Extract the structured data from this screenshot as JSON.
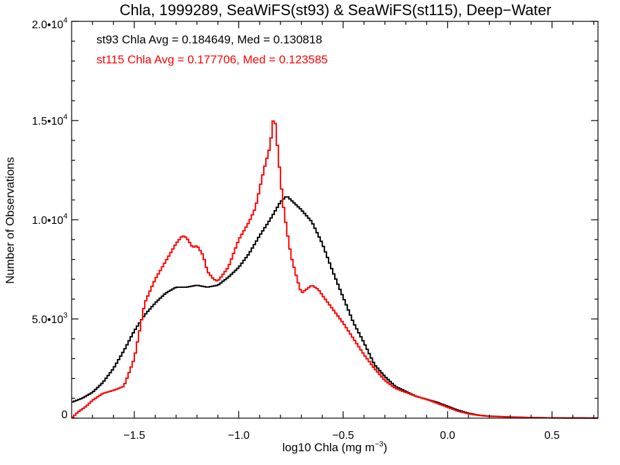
{
  "chart_data": {
    "type": "line",
    "title": "Chla, 1999289, SeaWiFS(st93) & SeaWiFS(st115), Deep−Water",
    "xlabel": "log10 Chla (mg m",
    "xlabel_sup": "−3",
    "xlabel_end": ")",
    "ylabel": "Number of Observations",
    "xlim": [
      -1.8,
      0.72
    ],
    "ylim": [
      0,
      20000
    ],
    "x_ticks": [
      -1.5,
      -1.0,
      -0.5,
      0.0,
      0.5
    ],
    "x_tick_labels": [
      "−1.5",
      "−1.0",
      "−0.5",
      "0.0",
      "0.5"
    ],
    "y_ticks": [
      0,
      5000,
      10000,
      15000,
      20000
    ],
    "y_tick_labels": [
      {
        "base": "0",
        "exp": ""
      },
      {
        "base": "5.0•10",
        "exp": "3"
      },
      {
        "base": "1.0•10",
        "exp": "4"
      },
      {
        "base": "1.5•10",
        "exp": "4"
      },
      {
        "base": "2.0•10",
        "exp": "4"
      }
    ],
    "annotations": [
      {
        "text": "st93 Chla Avg = 0.184649, Med = 0.130818",
        "color": "#000000"
      },
      {
        "text": "st115 Chla Avg = 0.177706, Med = 0.123585",
        "color": "#ff0000"
      }
    ],
    "series": [
      {
        "color": "#000000",
        "points": [
          [
            -1.8,
            800
          ],
          [
            -1.75,
            1000
          ],
          [
            -1.7,
            1300
          ],
          [
            -1.65,
            1800
          ],
          [
            -1.6,
            2500
          ],
          [
            -1.55,
            3400
          ],
          [
            -1.5,
            4400
          ],
          [
            -1.45,
            5200
          ],
          [
            -1.4,
            5800
          ],
          [
            -1.35,
            6300
          ],
          [
            -1.3,
            6600
          ],
          [
            -1.25,
            6600
          ],
          [
            -1.2,
            6700
          ],
          [
            -1.15,
            6600
          ],
          [
            -1.1,
            6700
          ],
          [
            -1.05,
            7100
          ],
          [
            -1.0,
            7600
          ],
          [
            -0.95,
            8300
          ],
          [
            -0.9,
            9200
          ],
          [
            -0.85,
            10000
          ],
          [
            -0.8,
            10900
          ],
          [
            -0.77,
            11200
          ],
          [
            -0.75,
            11000
          ],
          [
            -0.7,
            10500
          ],
          [
            -0.65,
            9900
          ],
          [
            -0.6,
            8800
          ],
          [
            -0.55,
            7400
          ],
          [
            -0.5,
            6100
          ],
          [
            -0.45,
            4800
          ],
          [
            -0.4,
            3800
          ],
          [
            -0.35,
            2700
          ],
          [
            -0.3,
            2100
          ],
          [
            -0.25,
            1600
          ],
          [
            -0.2,
            1350
          ],
          [
            -0.15,
            1100
          ],
          [
            -0.1,
            950
          ],
          [
            -0.05,
            800
          ],
          [
            0.0,
            600
          ],
          [
            0.05,
            400
          ],
          [
            0.1,
            250
          ],
          [
            0.15,
            150
          ],
          [
            0.2,
            100
          ],
          [
            0.3,
            60
          ],
          [
            0.4,
            30
          ],
          [
            0.5,
            15
          ],
          [
            0.6,
            8
          ],
          [
            0.72,
            5
          ]
        ]
      },
      {
        "color": "#ff0000",
        "points": [
          [
            -1.8,
            0
          ],
          [
            -1.77,
            300
          ],
          [
            -1.73,
            600
          ],
          [
            -1.7,
            900
          ],
          [
            -1.65,
            1250
          ],
          [
            -1.6,
            1400
          ],
          [
            -1.55,
            1600
          ],
          [
            -1.5,
            3000
          ],
          [
            -1.45,
            5800
          ],
          [
            -1.4,
            7000
          ],
          [
            -1.35,
            7900
          ],
          [
            -1.3,
            8800
          ],
          [
            -1.27,
            9200
          ],
          [
            -1.25,
            9100
          ],
          [
            -1.22,
            8600
          ],
          [
            -1.2,
            8700
          ],
          [
            -1.17,
            8200
          ],
          [
            -1.15,
            7400
          ],
          [
            -1.12,
            7000
          ],
          [
            -1.1,
            6900
          ],
          [
            -1.05,
            7600
          ],
          [
            -1.0,
            9000
          ],
          [
            -0.95,
            9900
          ],
          [
            -0.92,
            10600
          ],
          [
            -0.88,
            12500
          ],
          [
            -0.85,
            13700
          ],
          [
            -0.83,
            15400
          ],
          [
            -0.81,
            13200
          ],
          [
            -0.79,
            11000
          ],
          [
            -0.77,
            9500
          ],
          [
            -0.75,
            8200
          ],
          [
            -0.72,
            7000
          ],
          [
            -0.7,
            6300
          ],
          [
            -0.65,
            6700
          ],
          [
            -0.62,
            6500
          ],
          [
            -0.6,
            6200
          ],
          [
            -0.55,
            5500
          ],
          [
            -0.5,
            4800
          ],
          [
            -0.45,
            4000
          ],
          [
            -0.4,
            3200
          ],
          [
            -0.35,
            2500
          ],
          [
            -0.3,
            1900
          ],
          [
            -0.25,
            1500
          ],
          [
            -0.2,
            1300
          ],
          [
            -0.15,
            1100
          ],
          [
            -0.1,
            950
          ],
          [
            -0.05,
            750
          ],
          [
            0.0,
            550
          ],
          [
            0.05,
            350
          ],
          [
            0.1,
            220
          ],
          [
            0.15,
            140
          ],
          [
            0.2,
            90
          ],
          [
            0.3,
            50
          ],
          [
            0.4,
            30
          ],
          [
            0.5,
            15
          ],
          [
            0.6,
            8
          ],
          [
            0.72,
            5
          ]
        ]
      }
    ]
  }
}
